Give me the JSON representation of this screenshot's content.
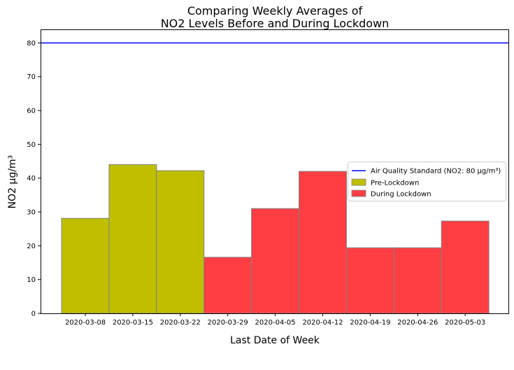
{
  "chart_data": {
    "type": "bar",
    "title_lines": [
      "Comparing Weekly Averages of",
      "NO2 Levels Before and During Lockdown"
    ],
    "xlabel": "Last Date of Week",
    "ylabel": "NO2 µg/m³",
    "categories": [
      "2020-03-08",
      "2020-03-15",
      "2020-03-22",
      "2020-03-29",
      "2020-04-05",
      "2020-04-12",
      "2020-04-19",
      "2020-04-26",
      "2020-05-03"
    ],
    "values": [
      28.1,
      44.0,
      42.2,
      16.6,
      31.0,
      42.0,
      19.4,
      19.4,
      27.3
    ],
    "groups": [
      "Pre-Lockdown",
      "Pre-Lockdown",
      "Pre-Lockdown",
      "During Lockdown",
      "During Lockdown",
      "During Lockdown",
      "During Lockdown",
      "During Lockdown",
      "During Lockdown"
    ],
    "ylim": [
      0,
      84
    ],
    "yticks": [
      0,
      10,
      20,
      30,
      40,
      50,
      60,
      70,
      80
    ],
    "reference_line": {
      "value": 80,
      "label": "Air Quality Standard (NO2: 80 µg/m³)",
      "color": "#0000ff"
    },
    "series_colors": {
      "Pre-Lockdown": "#bfbf00",
      "During Lockdown": "#ff3e43"
    },
    "legend": {
      "placement": "center-right",
      "entries": [
        {
          "label": "Air Quality Standard (NO2: 80 µg/m³)",
          "kind": "line",
          "color": "#0000ff"
        },
        {
          "label": "Pre-Lockdown",
          "kind": "patch",
          "color": "#bfbf00"
        },
        {
          "label": "During Lockdown",
          "kind": "patch",
          "color": "#ff3e43"
        }
      ]
    },
    "grid": false
  }
}
